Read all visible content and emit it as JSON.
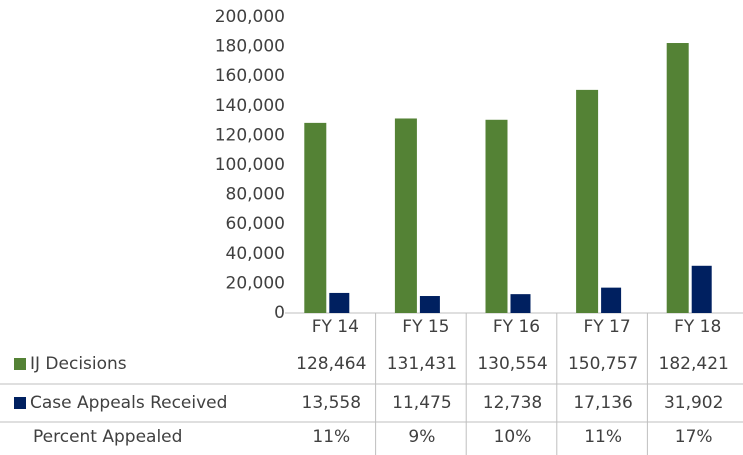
{
  "chart_data": {
    "type": "bar",
    "categories": [
      "FY 14",
      "FY 15",
      "FY 16",
      "FY 17",
      "FY 18"
    ],
    "series": [
      {
        "name": "IJ Decisions",
        "color": "#548235",
        "values": [
          128464,
          131431,
          130554,
          150757,
          182421
        ],
        "value_labels": [
          "128,464",
          "131,431",
          "130,554",
          "150,757",
          "182,421"
        ]
      },
      {
        "name": "Case Appeals Received",
        "color": "#002060",
        "values": [
          13558,
          11475,
          12738,
          17136,
          31902
        ],
        "value_labels": [
          "13,558",
          "11,475",
          "12,738",
          "17,136",
          "31,902"
        ]
      }
    ],
    "table_rows": [
      {
        "name": "Percent Appealed",
        "values": [
          11,
          9,
          10,
          11,
          17
        ],
        "value_labels": [
          "11%",
          "9%",
          "10%",
          "11%",
          "17%"
        ]
      }
    ],
    "ylim": [
      0,
      200000
    ],
    "yticks": [
      0,
      {
        "value": 20000,
        "label": "20,000"
      },
      {
        "value": 40000,
        "label": "40,000"
      },
      {
        "value": 60000,
        "label": "60,000"
      },
      {
        "value": 80000,
        "label": "80,000"
      },
      {
        "value": 100000,
        "label": "100,000"
      },
      {
        "value": 120000,
        "label": "120,000"
      },
      {
        "value": 140000,
        "label": "140,000"
      },
      {
        "value": 160000,
        "label": "160,000"
      },
      {
        "value": 180000,
        "label": "180,000"
      },
      {
        "value": 200000,
        "label": "200,000"
      }
    ],
    "grid": false
  }
}
